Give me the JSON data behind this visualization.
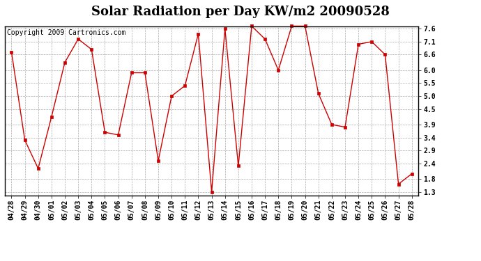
{
  "title": "Solar Radiation per Day KW/m2 20090528",
  "copyright_text": "Copyright 2009 Cartronics.com",
  "labels": [
    "04/28",
    "04/29",
    "04/30",
    "05/01",
    "05/02",
    "05/03",
    "05/04",
    "05/05",
    "05/06",
    "05/07",
    "05/08",
    "05/09",
    "05/10",
    "05/11",
    "05/12",
    "05/13",
    "05/14",
    "05/15",
    "05/16",
    "05/17",
    "05/18",
    "05/19",
    "05/20",
    "05/21",
    "05/22",
    "05/23",
    "05/24",
    "05/25",
    "05/26",
    "05/27",
    "05/28"
  ],
  "values": [
    6.7,
    3.3,
    2.2,
    4.2,
    6.3,
    7.2,
    6.8,
    3.6,
    3.5,
    5.9,
    5.9,
    2.5,
    5.0,
    5.4,
    7.4,
    1.3,
    7.6,
    2.3,
    7.7,
    7.2,
    6.0,
    7.7,
    7.7,
    5.1,
    3.9,
    3.8,
    7.0,
    7.1,
    6.6,
    1.6,
    2.0
  ],
  "line_color": "#cc0000",
  "marker": "s",
  "marker_size": 2.5,
  "background_color": "#ffffff",
  "plot_bg_color": "#ffffff",
  "grid_color": "#aaaaaa",
  "ylim_min": 1.3,
  "ylim_max": 7.6,
  "yticks": [
    1.3,
    1.8,
    2.4,
    2.9,
    3.4,
    3.9,
    4.5,
    5.0,
    5.5,
    6.0,
    6.6,
    7.1,
    7.6
  ],
  "title_fontsize": 13,
  "tick_fontsize": 7,
  "copyright_fontsize": 7
}
